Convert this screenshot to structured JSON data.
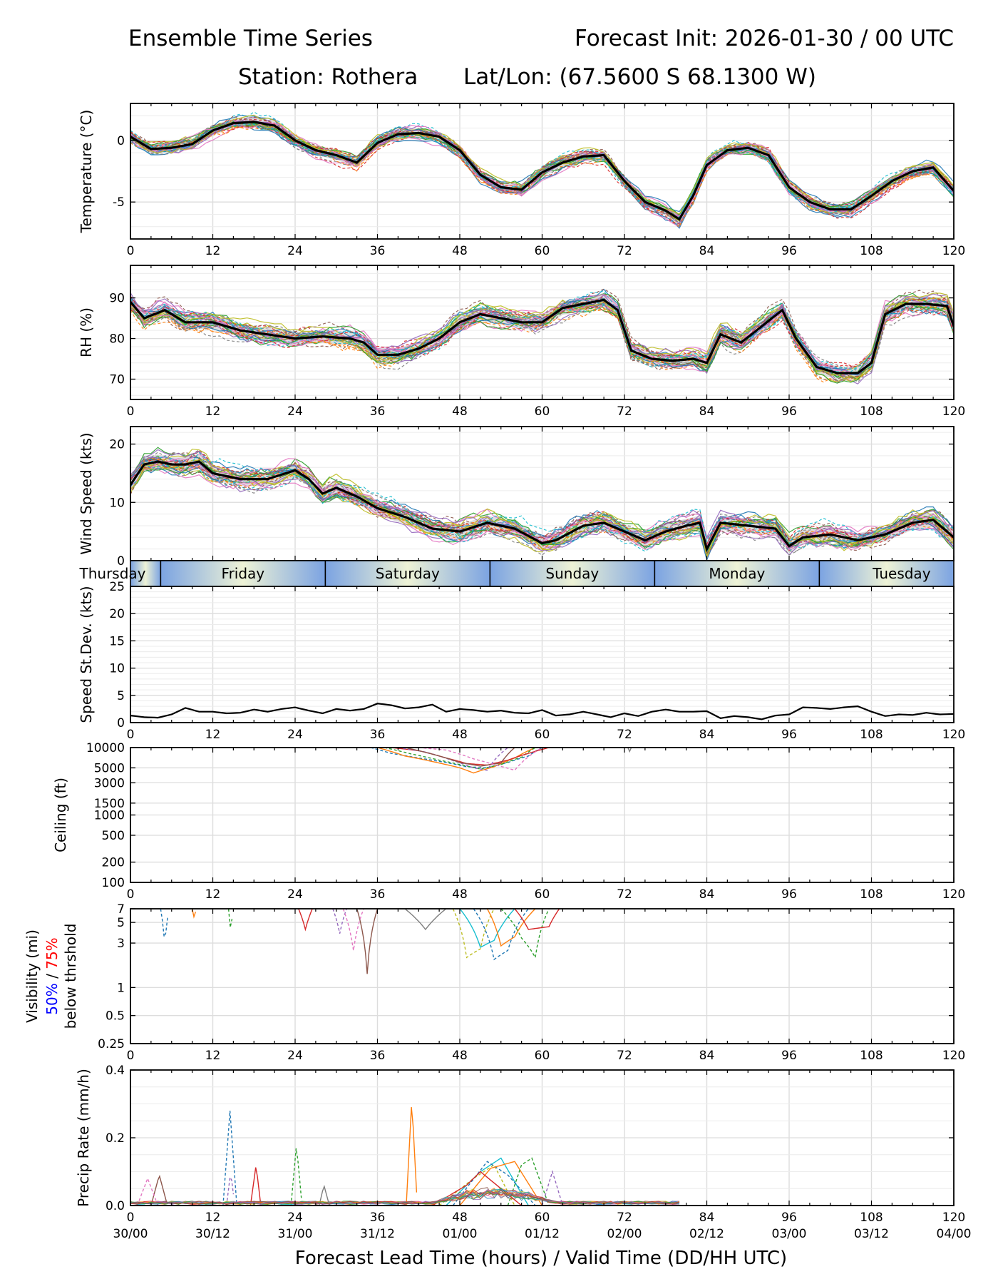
{
  "header": {
    "title_left": "Ensemble Time Series",
    "title_right": "Forecast Init: 2026-01-30 / 00 UTC",
    "station": "Station: Rothera",
    "latlon": "Lat/Lon: (67.5600 S 68.1300 W)"
  },
  "x_axis": {
    "label": "Forecast Lead Time (hours) / Valid Time (DD/HH UTC)",
    "lead_ticks": [
      "0",
      "12",
      "24",
      "36",
      "48",
      "60",
      "72",
      "84",
      "96",
      "108",
      "120"
    ],
    "valid_ticks": [
      "30/00",
      "30/12",
      "31/00",
      "31/12",
      "01/00",
      "01/12",
      "02/00",
      "02/12",
      "03/00",
      "03/12",
      "04/00"
    ]
  },
  "day_band": {
    "labels": [
      "Thursday",
      "Friday",
      "Saturday",
      "Sunday",
      "Monday",
      "Tuesday"
    ]
  },
  "colors": {
    "members": [
      "#1f77b4",
      "#ff7f0e",
      "#2ca02c",
      "#d62728",
      "#9467bd",
      "#8c564b",
      "#e377c2",
      "#7f7f7f",
      "#bcbd22",
      "#17becf"
    ],
    "mean": "#000000",
    "spread": "#c8c8c8",
    "grid": "#dddddd",
    "vis_50": "#0000ff",
    "vis_75": "#ff0000"
  },
  "chart_data": [
    {
      "type": "line",
      "id": "temp",
      "ylabel": "Temperature (°C)",
      "ylim": [
        -8,
        3
      ],
      "yticks": [
        "0",
        "-5"
      ],
      "ytick_values": [
        0,
        -5
      ],
      "mean": {
        "hours": [
          0,
          3,
          6,
          9,
          12,
          15,
          18,
          21,
          24,
          27,
          30,
          33,
          36,
          39,
          42,
          45,
          48,
          51,
          54,
          57,
          60,
          63,
          66,
          69,
          72,
          75,
          78,
          80,
          82,
          84,
          87,
          90,
          93,
          96,
          99,
          102,
          105,
          108,
          111,
          114,
          117,
          120
        ],
        "values": [
          0.3,
          -0.7,
          -0.6,
          -0.3,
          0.8,
          1.4,
          1.5,
          1.2,
          0.0,
          -0.8,
          -1.2,
          -1.8,
          -0.2,
          0.5,
          0.6,
          0.3,
          -0.8,
          -2.8,
          -3.8,
          -4.0,
          -2.6,
          -1.8,
          -1.3,
          -1.2,
          -3.3,
          -5.0,
          -5.7,
          -6.4,
          -4.5,
          -2.0,
          -0.8,
          -0.6,
          -1.2,
          -3.8,
          -5.0,
          -5.6,
          -5.6,
          -4.5,
          -3.3,
          -2.5,
          -2.2,
          -4.1
        ]
      },
      "member_count": 30,
      "member_spread": 0.7
    },
    {
      "type": "line",
      "id": "rh",
      "ylabel": "RH (%)",
      "ylim": [
        65,
        98
      ],
      "yticks": [
        "90",
        "80",
        "70"
      ],
      "ytick_values": [
        90,
        80,
        70
      ],
      "mean": {
        "hours": [
          0,
          2,
          5,
          8,
          12,
          16,
          20,
          24,
          28,
          32,
          34,
          36,
          39,
          42,
          45,
          48,
          51,
          54,
          57,
          60,
          63,
          66,
          69,
          71,
          73,
          76,
          79,
          82,
          84,
          86,
          89,
          92,
          95,
          97,
          100,
          103,
          106,
          108,
          110,
          113,
          116,
          119,
          120
        ],
        "values": [
          89,
          85,
          87,
          84,
          84,
          82,
          81,
          80,
          80.5,
          80,
          79,
          76,
          76,
          77.5,
          80,
          84,
          86,
          85,
          84,
          84,
          87.5,
          88.5,
          89.5,
          87,
          77,
          75,
          74.5,
          75,
          74,
          81,
          79,
          83,
          87,
          80,
          73,
          71.5,
          71.5,
          74,
          86,
          88.5,
          88.5,
          88,
          83
        ]
      },
      "member_count": 30,
      "member_spread": 3.0
    },
    {
      "type": "line",
      "id": "wind",
      "ylabel": "Wind Speed (kts)",
      "ylim": [
        0,
        23
      ],
      "yticks": [
        "20",
        "10",
        "0"
      ],
      "ytick_values": [
        20,
        10,
        0
      ],
      "mean": {
        "hours": [
          0,
          2,
          4,
          6,
          8,
          10,
          12,
          16,
          20,
          24,
          26,
          28,
          30,
          33,
          36,
          40,
          44,
          48,
          52,
          56,
          60,
          62,
          66,
          69,
          72,
          75,
          78,
          81,
          83,
          84,
          86,
          90,
          94,
          96,
          98,
          102,
          106,
          110,
          114,
          117,
          120
        ],
        "values": [
          13,
          16.5,
          17,
          16.5,
          16.5,
          17,
          15,
          14,
          14,
          15.5,
          14,
          11.5,
          12.5,
          11,
          9,
          7.5,
          5.5,
          5,
          6.5,
          5.5,
          3,
          3.5,
          6,
          6.5,
          5,
          3.5,
          5,
          6,
          6.5,
          2,
          6.5,
          6,
          5.5,
          2.5,
          4,
          4.5,
          3.5,
          4.5,
          6.5,
          7,
          4
        ]
      },
      "member_count": 30,
      "member_spread": 2.2
    },
    {
      "type": "line",
      "id": "sdev",
      "ylabel": "Speed St.Dev. (kts)",
      "ylim": [
        0,
        25
      ],
      "yticks": [
        "25",
        "20",
        "15",
        "10",
        "5",
        "0"
      ],
      "ytick_values": [
        25,
        20,
        15,
        10,
        5,
        0
      ],
      "mean": {
        "hours": [
          0,
          2,
          4,
          6,
          8,
          10,
          12,
          14,
          16,
          18,
          20,
          22,
          24,
          26,
          28,
          30,
          32,
          34,
          36,
          38,
          40,
          42,
          44,
          46,
          48,
          50,
          52,
          54,
          56,
          58,
          60,
          62,
          64,
          66,
          68,
          70,
          72,
          74,
          76,
          78,
          80,
          82,
          84,
          86,
          88,
          90,
          92,
          94,
          96,
          98,
          100,
          102,
          104,
          106,
          108,
          110,
          112,
          114,
          116,
          118,
          120
        ],
        "values": [
          1.3,
          1.0,
          0.9,
          1.5,
          2.7,
          2.0,
          2.0,
          1.7,
          1.8,
          2.4,
          2.0,
          2.5,
          2.8,
          2.2,
          1.7,
          2.5,
          2.2,
          2.5,
          3.5,
          3.2,
          2.6,
          2.8,
          3.3,
          2.0,
          2.5,
          2.3,
          2.0,
          2.2,
          1.8,
          1.7,
          2.3,
          1.3,
          1.5,
          2.0,
          1.5,
          1.0,
          1.7,
          1.2,
          2.0,
          2.4,
          2.0,
          2.0,
          2.1,
          0.8,
          1.2,
          1.0,
          0.6,
          1.3,
          1.5,
          2.8,
          2.7,
          2.5,
          2.8,
          3.0,
          2.0,
          1.2,
          1.5,
          1.4,
          1.8,
          1.5,
          1.6
        ]
      }
    },
    {
      "type": "line",
      "id": "ceiling",
      "ylabel": "Ceiling (ft)",
      "scale": "log",
      "ylim": [
        100,
        10000
      ],
      "yticks": [
        "10000",
        "5000",
        "3000",
        "1500",
        "1000",
        "500",
        "200",
        "100"
      ],
      "ytick_values": [
        10000,
        5000,
        3000,
        1500,
        1000,
        500,
        200,
        100
      ],
      "member_curves": [
        {
          "hours": [
            35,
            38,
            42,
            46,
            49,
            52,
            55,
            58,
            60
          ],
          "values": [
            10000,
            8200,
            7000,
            6000,
            5200,
            5000,
            6000,
            7500,
            10000
          ]
        },
        {
          "hours": [
            36,
            40,
            44,
            48,
            50,
            53,
            56,
            59
          ],
          "values": [
            10000,
            7500,
            6200,
            5000,
            4200,
            5200,
            7000,
            10000
          ]
        },
        {
          "hours": [
            37,
            41,
            45,
            48,
            51,
            54,
            57,
            59
          ],
          "values": [
            10000,
            8000,
            6500,
            5600,
            4800,
            5600,
            7200,
            10000
          ]
        },
        {
          "hours": [
            38,
            42,
            46,
            49,
            52,
            55,
            58,
            61
          ],
          "values": [
            10000,
            9000,
            7000,
            5800,
            5500,
            6500,
            8200,
            10000
          ]
        },
        {
          "hours": [
            39,
            43,
            47,
            50,
            52,
            55
          ],
          "values": [
            10000,
            8600,
            6400,
            5000,
            4600,
            10000
          ]
        },
        {
          "hours": [
            40,
            44,
            48,
            51,
            54,
            56
          ],
          "values": [
            10000,
            8000,
            6000,
            5300,
            5900,
            10000
          ]
        },
        {
          "hours": [
            42,
            46,
            50,
            53,
            56,
            60
          ],
          "values": [
            10000,
            9200,
            6800,
            5600,
            4600,
            10000
          ]
        },
        {
          "hours": [
            72.5,
            72.7,
            73
          ],
          "values": [
            10000,
            8500,
            10000
          ]
        }
      ]
    },
    {
      "type": "line",
      "id": "vis",
      "ylabel": "Visibility (mi)",
      "ylabel_mid_50": "50%",
      "ylabel_mid_sep": " / ",
      "ylabel_mid_75": "75%",
      "ylabel_low": "below thrshold",
      "scale": "log",
      "ylim": [
        0.25,
        7
      ],
      "yticks": [
        "7",
        "5",
        "3",
        "1",
        "0.5",
        "0.25"
      ],
      "ytick_values": [
        7,
        5,
        3,
        1,
        0.5,
        0.25
      ],
      "member_curves": [
        {
          "hours": [
            4.4,
            5.0,
            5.6
          ],
          "values": [
            7,
            2.8,
            7
          ]
        },
        {
          "hours": [
            9.0,
            9.3,
            9.6
          ],
          "values": [
            7,
            5.5,
            7
          ]
        },
        {
          "hours": [
            14.3,
            14.6,
            15.0
          ],
          "values": [
            7,
            3.9,
            7
          ]
        },
        {
          "hours": [
            24.5,
            25.5,
            26.5
          ],
          "values": [
            7,
            4.2,
            7
          ]
        },
        {
          "hours": [
            29.5,
            30.5,
            31.5
          ],
          "values": [
            7,
            3.8,
            7
          ]
        },
        {
          "hours": [
            33,
            34.5,
            36
          ],
          "values": [
            7,
            1.4,
            7
          ]
        },
        {
          "hours": [
            31,
            32.5,
            34
          ],
          "values": [
            7,
            2.5,
            7
          ]
        },
        {
          "hours": [
            40,
            43,
            46
          ],
          "values": [
            7,
            4.2,
            7
          ]
        },
        {
          "hours": [
            47,
            49,
            51,
            53
          ],
          "values": [
            7,
            2.1,
            2.6,
            7
          ]
        },
        {
          "hours": [
            48,
            51,
            53,
            56
          ],
          "values": [
            7,
            2.7,
            3.2,
            7
          ]
        },
        {
          "hours": [
            50,
            53,
            55,
            58
          ],
          "values": [
            7,
            2.0,
            2.5,
            7
          ]
        },
        {
          "hours": [
            52,
            54,
            56,
            59
          ],
          "values": [
            7,
            2.8,
            3.5,
            7
          ]
        },
        {
          "hours": [
            54,
            57,
            59,
            61
          ],
          "values": [
            7,
            3.4,
            2.1,
            7
          ]
        },
        {
          "hours": [
            56,
            58,
            61,
            62.5
          ],
          "values": [
            7,
            4.2,
            4.5,
            7
          ]
        }
      ]
    },
    {
      "type": "line",
      "id": "precip",
      "ylabel": "Precip Rate (mm/h)",
      "ylim": [
        0,
        0.4
      ],
      "yticks": [
        "0.4",
        "0.2",
        "0.0"
      ],
      "ytick_values": [
        0.4,
        0.2,
        0.0
      ],
      "member_curves": [
        {
          "hours": [
            13.5,
            14.5,
            15.5
          ],
          "values": [
            0,
            0.28,
            0
          ]
        },
        {
          "hours": [
            40.2,
            41,
            41.8
          ],
          "values": [
            0,
            0.31,
            0
          ]
        },
        {
          "hours": [
            23.4,
            24.2,
            25
          ],
          "values": [
            0,
            0.18,
            0
          ]
        },
        {
          "hours": [
            17.5,
            18.3,
            19
          ],
          "values": [
            0,
            0.12,
            0
          ]
        },
        {
          "hours": [
            14,
            14.6,
            15.2
          ],
          "values": [
            0,
            0.1,
            0
          ]
        },
        {
          "hours": [
            3,
            4.2,
            5.4
          ],
          "values": [
            0,
            0.09,
            0
          ]
        },
        {
          "hours": [
            1,
            2.5,
            4
          ],
          "values": [
            0,
            0.08,
            0
          ]
        },
        {
          "hours": [
            27.5,
            28.2,
            29
          ],
          "values": [
            0,
            0.06,
            0
          ]
        },
        {
          "hours": [
            45,
            50,
            53,
            56
          ],
          "values": [
            0,
            0.08,
            0.12,
            0
          ]
        },
        {
          "hours": [
            46,
            51,
            54,
            58
          ],
          "values": [
            0,
            0.1,
            0.14,
            0
          ]
        },
        {
          "hours": [
            47,
            52,
            55,
            59
          ],
          "values": [
            0,
            0.13,
            0.09,
            0
          ]
        },
        {
          "hours": [
            48,
            52.5,
            56,
            60
          ],
          "values": [
            0,
            0.11,
            0.13,
            0
          ]
        },
        {
          "hours": [
            55,
            57,
            58.5,
            61
          ],
          "values": [
            0,
            0.12,
            0.14,
            0
          ]
        },
        {
          "hours": [
            44,
            49,
            51,
            57
          ],
          "values": [
            0,
            0.06,
            0.1,
            0
          ]
        },
        {
          "hours": [
            60,
            61.5,
            63
          ],
          "values": [
            0,
            0.1,
            0
          ]
        }
      ]
    }
  ]
}
